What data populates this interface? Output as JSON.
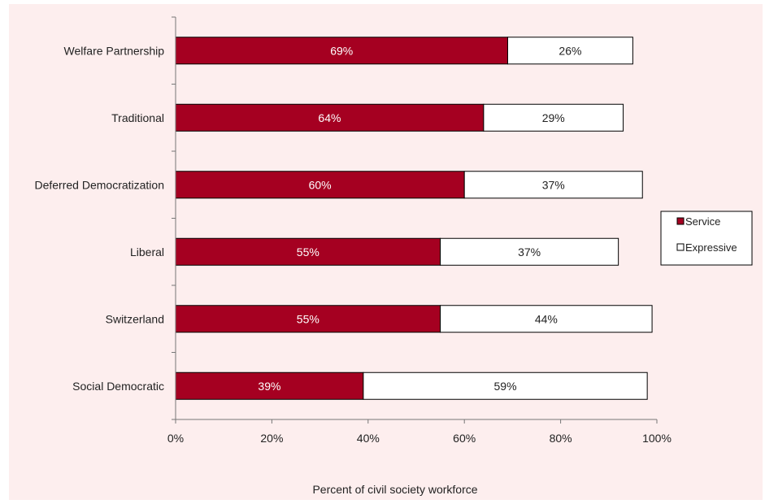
{
  "chart_data": {
    "type": "bar",
    "orientation": "horizontal",
    "stacked": true,
    "categories": [
      "Welfare Partnership",
      "Traditional",
      "Deferred Democratization",
      "Liberal",
      "Switzerland",
      "Social Democratic"
    ],
    "series": [
      {
        "name": "Service",
        "color": "#a50021",
        "values": [
          69,
          64,
          60,
          55,
          55,
          39
        ],
        "labels": [
          "69%",
          "64%",
          "60%",
          "55%",
          "55%",
          "39%"
        ]
      },
      {
        "name": "Expressive",
        "color": "#ffffff",
        "values": [
          26,
          29,
          37,
          37,
          44,
          59
        ],
        "labels": [
          "26%",
          "29%",
          "37%",
          "37%",
          "44%",
          "59%"
        ]
      }
    ],
    "title": "",
    "xlabel": "Percent of civil society workforce",
    "ylabel": "",
    "xlim": [
      0,
      100
    ],
    "xticks": [
      0,
      20,
      40,
      60,
      80,
      100
    ],
    "xtick_labels": [
      "0%",
      "20%",
      "40%",
      "60%",
      "80%",
      "100%"
    ],
    "grid": false,
    "legend_position": "right",
    "background_color": "#fdeeee"
  }
}
